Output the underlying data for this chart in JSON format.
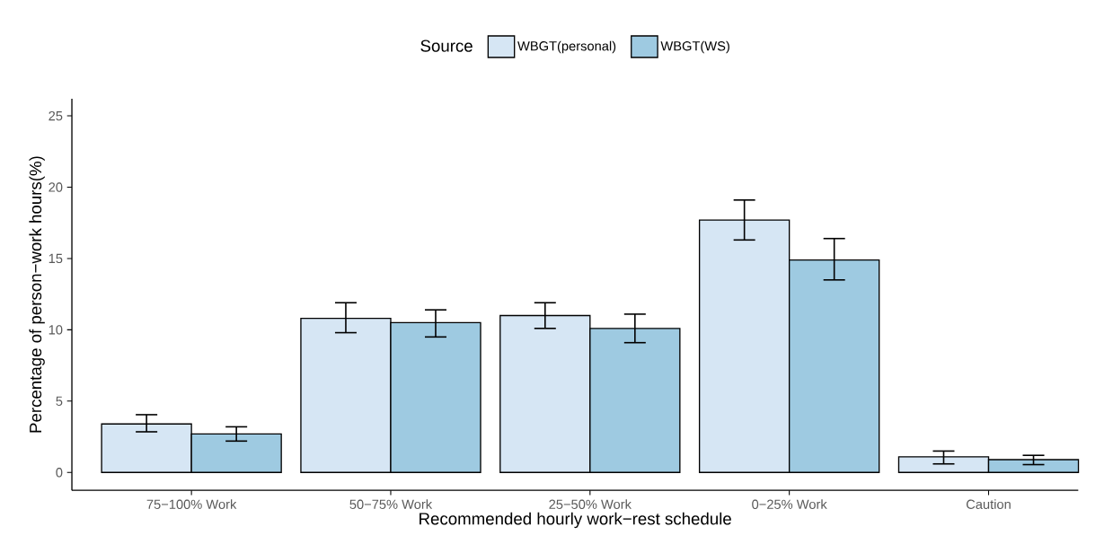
{
  "chart_data": {
    "type": "bar",
    "xlabel": "Recommended hourly work−rest schedule",
    "ylabel": "Percentage of person−work hours(%)",
    "legend_title": "Source",
    "legend": "top",
    "categories": [
      "75−100% Work",
      "50−75% Work",
      "25−50% Work",
      "0−25% Work",
      "Caution"
    ],
    "series": [
      {
        "name": "WBGT(personal)",
        "color": "#d6e6f4",
        "values": [
          3.4,
          10.8,
          11.0,
          17.7,
          1.1
        ],
        "errors": [
          [
            2.85,
            4.05
          ],
          [
            9.8,
            11.9
          ],
          [
            10.1,
            11.9
          ],
          [
            16.3,
            19.1
          ],
          [
            0.6,
            1.5
          ]
        ]
      },
      {
        "name": "WBGT(WS)",
        "color": "#9ecae1",
        "values": [
          2.7,
          10.5,
          10.1,
          14.9,
          0.9
        ],
        "errors": [
          [
            2.2,
            3.2
          ],
          [
            9.5,
            11.4
          ],
          [
            9.1,
            11.1
          ],
          [
            13.5,
            16.4
          ],
          [
            0.55,
            1.2
          ]
        ]
      }
    ],
    "ylim": [
      -1.25,
      26.2
    ],
    "yticks": [
      0,
      5,
      10,
      15,
      20,
      25
    ],
    "grid": false
  }
}
